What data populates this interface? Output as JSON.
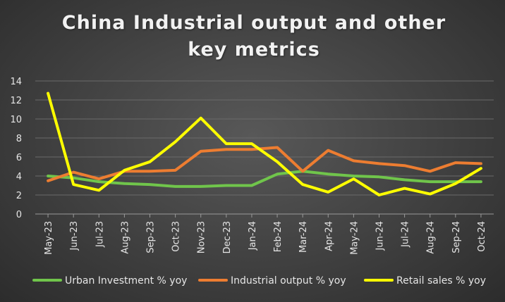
{
  "chart_data": {
    "type": "line",
    "title": "China Industrial output and other key metrics",
    "xlabel": "",
    "ylabel": "",
    "ylim": [
      0,
      14
    ],
    "yticks": [
      0,
      2,
      4,
      6,
      8,
      10,
      12,
      14
    ],
    "grid": true,
    "legend_position": "bottom",
    "categories": [
      "May-23",
      "Jun-23",
      "Jul-23",
      "Aug-23",
      "Sep-23",
      "Oct-23",
      "Nov-23",
      "Dec-23",
      "Jan-24",
      "Feb-24",
      "Mar-24",
      "Apr-24",
      "May-24",
      "Jun-24",
      "Jul-24",
      "Aug-24",
      "Sep-24",
      "Oct-24"
    ],
    "series": [
      {
        "name": "Urban Investment % yoy",
        "color": "#70c54b",
        "values": [
          4.0,
          3.8,
          3.4,
          3.2,
          3.1,
          2.9,
          2.9,
          3.0,
          3.0,
          4.2,
          4.5,
          4.2,
          4.0,
          3.9,
          3.6,
          3.4,
          3.4,
          3.4
        ]
      },
      {
        "name": "Industrial output % yoy",
        "color": "#ed7d31",
        "values": [
          3.5,
          4.4,
          3.7,
          4.5,
          4.5,
          4.6,
          6.6,
          6.8,
          6.8,
          7.0,
          4.5,
          6.7,
          5.6,
          5.3,
          5.1,
          4.5,
          5.4,
          5.3
        ]
      },
      {
        "name": "Retail sales % yoy",
        "color": "#ffff00",
        "values": [
          12.7,
          3.1,
          2.5,
          4.6,
          5.5,
          7.6,
          10.1,
          7.4,
          7.4,
          5.5,
          3.1,
          2.3,
          3.7,
          2.0,
          2.7,
          2.1,
          3.2,
          4.8
        ]
      }
    ]
  }
}
